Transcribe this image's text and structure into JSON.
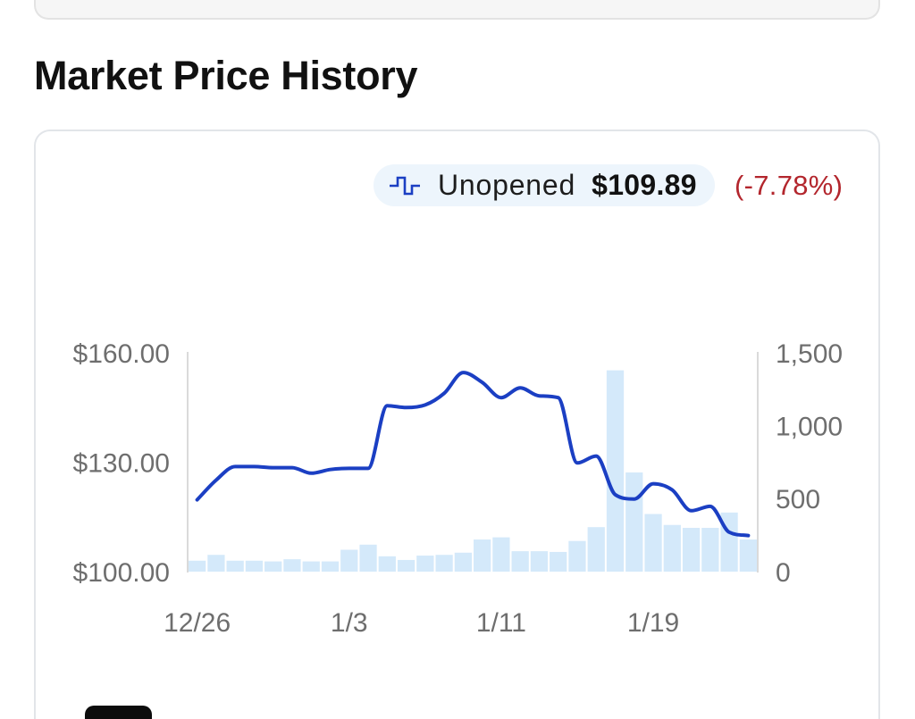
{
  "colors": {
    "line": "#1b3fc3",
    "bars": "#d4e9fa",
    "legend_background": "#edf5fc",
    "change_negative": "#b3262d",
    "axis_text": "#6e6e6e",
    "axis_line": "#dadada"
  },
  "chart_data": {
    "type": "line",
    "title": "Market Price History",
    "x": [
      "12/26",
      "12/27",
      "12/28",
      "12/29",
      "12/30",
      "12/31",
      "1/1",
      "1/2",
      "1/3",
      "1/4",
      "1/5",
      "1/6",
      "1/7",
      "1/8",
      "1/9",
      "1/10",
      "1/11",
      "1/12",
      "1/13",
      "1/14",
      "1/15",
      "1/16",
      "1/17",
      "1/18",
      "1/19",
      "1/20",
      "1/21",
      "1/22",
      "1/23",
      "1/24"
    ],
    "x_ticks": [
      "12/26",
      "1/3",
      "1/11",
      "1/19"
    ],
    "series": [
      {
        "name": "Unopened",
        "type": "line",
        "y_axis": "left",
        "values": [
          119.7,
          125.1,
          128.8,
          128.8,
          128.5,
          128.5,
          127.0,
          128.0,
          128.3,
          128.3,
          145.5,
          145.0,
          145.7,
          148.9,
          154.6,
          151.9,
          147.7,
          150.4,
          148.2,
          147.7,
          129.8,
          131.7,
          121.1,
          119.9,
          124.1,
          122.4,
          116.7,
          117.9,
          110.8,
          109.89
        ]
      },
      {
        "type": "bar",
        "y_axis": "right",
        "values": [
          75,
          115,
          75,
          75,
          70,
          85,
          70,
          70,
          150,
          185,
          105,
          80,
          110,
          115,
          130,
          220,
          235,
          140,
          140,
          135,
          210,
          305,
          1380,
          680,
          395,
          320,
          300,
          300,
          405,
          220
        ]
      }
    ],
    "y_left": {
      "lim": [
        100,
        160
      ],
      "ticks": [
        {
          "value": 160,
          "label": "$160.00"
        },
        {
          "value": 130,
          "label": "$130.00"
        },
        {
          "value": 100,
          "label": "$100.00"
        }
      ]
    },
    "y_right": {
      "lim": [
        0,
        1500
      ],
      "ticks": [
        {
          "value": 1500,
          "label": "1,500"
        },
        {
          "value": 1000,
          "label": "1,000"
        },
        {
          "value": 500,
          "label": "500"
        },
        {
          "value": 0,
          "label": "0"
        }
      ]
    },
    "grid": false,
    "legend": {
      "position": "top-right",
      "icon": "step-line-icon",
      "current_price": "$109.89",
      "change": "(-7.78%)"
    }
  }
}
